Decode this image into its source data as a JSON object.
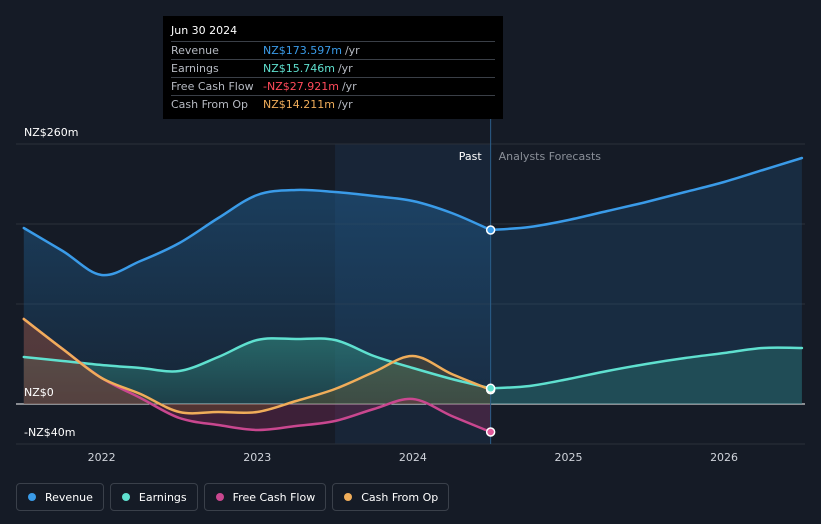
{
  "tooltip": {
    "date": "Jun 30 2024",
    "rows": [
      {
        "label": "Revenue",
        "value": "NZ$173.597m",
        "unit": "/yr",
        "color": "#3a9be8"
      },
      {
        "label": "Earnings",
        "value": "NZ$15.746m",
        "unit": "/yr",
        "color": "#5fe0cf"
      },
      {
        "label": "Free Cash Flow",
        "value": "-NZ$27.921m",
        "unit": "/yr",
        "color": "#ff4a5a"
      },
      {
        "label": "Cash From Op",
        "value": "NZ$14.211m",
        "unit": "/yr",
        "color": "#f0ad5a"
      }
    ]
  },
  "region": {
    "past": "Past",
    "forecast": "Analysts Forecasts"
  },
  "legend": [
    {
      "label": "Revenue",
      "color": "#3a9be8"
    },
    {
      "label": "Earnings",
      "color": "#5fe0cf"
    },
    {
      "label": "Free Cash Flow",
      "color": "#c9478f"
    },
    {
      "label": "Cash From Op",
      "color": "#f0ad5a"
    }
  ],
  "chart_data": {
    "type": "line",
    "title": "",
    "xlabel": "",
    "ylabel": "",
    "y_ticks": [
      {
        "value": 260,
        "label": "NZ$260m"
      },
      {
        "value": 0,
        "label": "NZ$0"
      },
      {
        "value": -40,
        "label": "-NZ$40m"
      }
    ],
    "x_ticks": [
      {
        "value": 2022,
        "label": "2022"
      },
      {
        "value": 2023,
        "label": "2023"
      },
      {
        "value": 2024,
        "label": "2024"
      },
      {
        "value": 2025,
        "label": "2025"
      },
      {
        "value": 2026,
        "label": "2026"
      }
    ],
    "xlim": [
      2021.45,
      2026.52
    ],
    "ylim": [
      -40,
      260
    ],
    "past_end": 2024.5,
    "shade_start": 2023.5,
    "series": [
      {
        "name": "Revenue",
        "color": "#3a9be8",
        "fill": true,
        "points": [
          [
            2021.5,
            176
          ],
          [
            2021.75,
            153
          ],
          [
            2022.0,
            129
          ],
          [
            2022.25,
            143
          ],
          [
            2022.5,
            161
          ],
          [
            2022.75,
            186
          ],
          [
            2023.0,
            209
          ],
          [
            2023.25,
            214
          ],
          [
            2023.5,
            212
          ],
          [
            2023.75,
            208
          ],
          [
            2024.0,
            203
          ],
          [
            2024.25,
            191
          ],
          [
            2024.5,
            174
          ]
        ]
      },
      {
        "name": "Revenue Forecast",
        "color": "#3a9be8",
        "fill": false,
        "points": [
          [
            2024.5,
            174
          ],
          [
            2024.75,
            177
          ],
          [
            2025.0,
            184
          ],
          [
            2025.25,
            193
          ],
          [
            2025.5,
            202
          ],
          [
            2025.75,
            212
          ],
          [
            2026.0,
            222
          ],
          [
            2026.25,
            234
          ],
          [
            2026.5,
            246
          ]
        ]
      },
      {
        "name": "Earnings",
        "color": "#5fe0cf",
        "fill": true,
        "points": [
          [
            2021.5,
            47
          ],
          [
            2021.75,
            43
          ],
          [
            2022.0,
            39
          ],
          [
            2022.25,
            36
          ],
          [
            2022.5,
            33
          ],
          [
            2022.75,
            47
          ],
          [
            2023.0,
            64
          ],
          [
            2023.25,
            65
          ],
          [
            2023.5,
            64
          ],
          [
            2023.75,
            48
          ],
          [
            2024.0,
            36
          ],
          [
            2024.25,
            25
          ],
          [
            2024.5,
            15.7
          ]
        ]
      },
      {
        "name": "Earnings Forecast",
        "color": "#5fe0cf",
        "fill": false,
        "points": [
          [
            2024.5,
            15.7
          ],
          [
            2024.75,
            18
          ],
          [
            2025.0,
            25
          ],
          [
            2025.25,
            33
          ],
          [
            2025.5,
            40
          ],
          [
            2025.75,
            46
          ],
          [
            2026.0,
            51
          ],
          [
            2026.25,
            56
          ],
          [
            2026.5,
            56
          ]
        ]
      },
      {
        "name": "Free Cash Flow",
        "color": "#c9478f",
        "fill": true,
        "points": [
          [
            2021.5,
            85
          ],
          [
            2021.75,
            55
          ],
          [
            2022.0,
            26
          ],
          [
            2022.25,
            6
          ],
          [
            2022.5,
            -14
          ],
          [
            2022.75,
            -21
          ],
          [
            2023.0,
            -26
          ],
          [
            2023.25,
            -22
          ],
          [
            2023.5,
            -17
          ],
          [
            2023.75,
            -5
          ],
          [
            2024.0,
            5
          ],
          [
            2024.25,
            -12
          ],
          [
            2024.5,
            -28
          ]
        ]
      },
      {
        "name": "Cash From Op",
        "color": "#f0ad5a",
        "fill": true,
        "points": [
          [
            2021.5,
            85
          ],
          [
            2021.75,
            55
          ],
          [
            2022.0,
            26
          ],
          [
            2022.25,
            10
          ],
          [
            2022.5,
            -8
          ],
          [
            2022.75,
            -8
          ],
          [
            2023.0,
            -8
          ],
          [
            2023.25,
            3
          ],
          [
            2023.5,
            15
          ],
          [
            2023.75,
            32
          ],
          [
            2024.0,
            48
          ],
          [
            2024.25,
            30
          ],
          [
            2024.5,
            14.2
          ]
        ]
      }
    ],
    "markers": [
      {
        "series": "Revenue",
        "x": 2024.5,
        "y": 174,
        "color": "#3a9be8"
      },
      {
        "series": "Cash From Op",
        "x": 2024.5,
        "y": 14.2,
        "color": "#f0ad5a"
      },
      {
        "series": "Earnings",
        "x": 2024.5,
        "y": 15.7,
        "color": "#5fe0cf"
      },
      {
        "series": "Free Cash Flow",
        "x": 2024.5,
        "y": -28,
        "color": "#e05a9a"
      }
    ]
  }
}
